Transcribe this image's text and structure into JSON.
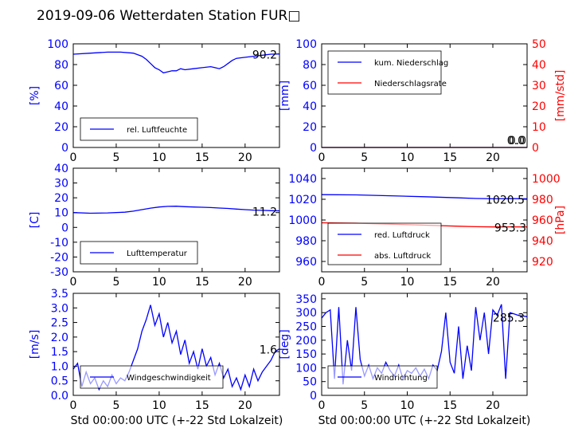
{
  "figure": {
    "title": "2019-09-06 Wetterdaten Station FUR□",
    "xlabel": "Std 00:00:00 UTC (+-22 Std Lokalzeit)"
  },
  "colors": {
    "blue": "#0000ff",
    "red": "#ff0000",
    "light_blue": "#8080ff",
    "box": "#a0a0a0"
  },
  "chart_data": [
    {
      "id": "humidity",
      "type": "line",
      "xlim": [
        0,
        24
      ],
      "ylim": [
        0,
        100
      ],
      "xticks": [
        0,
        5,
        10,
        15,
        20
      ],
      "yticks": [
        0,
        20,
        40,
        60,
        80,
        100
      ],
      "ylabel": "[%]",
      "value_label": "90.2",
      "legend": {
        "position": "lower-left",
        "entries": [
          "rel. Luftfeuchte"
        ]
      },
      "series": [
        {
          "name": "rel. Luftfeuchte",
          "color": "#0000ff",
          "x": [
            0,
            2,
            4,
            5.5,
            7,
            8,
            8.5,
            9,
            9.5,
            10,
            10.5,
            11,
            11.5,
            12,
            12.5,
            13,
            14,
            15,
            16,
            16.5,
            17,
            17.5,
            18,
            18.5,
            19,
            20,
            21,
            22,
            23,
            24
          ],
          "y": [
            90,
            91,
            92,
            92,
            91,
            88,
            85,
            81,
            77,
            75,
            72,
            73,
            74,
            74,
            76,
            75,
            76,
            77,
            78,
            77,
            76,
            78,
            81,
            84,
            86,
            87,
            88,
            89,
            90,
            90.2
          ]
        }
      ]
    },
    {
      "id": "precip",
      "type": "line",
      "xlim": [
        0,
        24
      ],
      "ylim": [
        0,
        100
      ],
      "xticks": [
        0,
        5,
        10,
        15,
        20
      ],
      "yticks": [
        0,
        20,
        40,
        60,
        80,
        100
      ],
      "ylabel": "[mm]",
      "ylim_right": [
        0,
        50
      ],
      "yticks_right": [
        0,
        10,
        20,
        30,
        40,
        50
      ],
      "ylabel_right": "[mm/std]",
      "value_label": "0.0",
      "value_label_right": "0.0",
      "legend": {
        "position": "top-left",
        "entries": [
          "kum. Niederschlag",
          "Niederschlagsrate"
        ]
      },
      "series": [
        {
          "name": "kum. Niederschlag",
          "color": "#0000ff",
          "axis": "left",
          "x": [
            0,
            24
          ],
          "y": [
            0,
            0
          ]
        },
        {
          "name": "Niederschlagsrate",
          "color": "#ff0000",
          "axis": "right",
          "x": [
            0,
            24
          ],
          "y": [
            0,
            0
          ]
        }
      ]
    },
    {
      "id": "temperature",
      "type": "line",
      "xlim": [
        0,
        24
      ],
      "ylim": [
        -30,
        40
      ],
      "xticks": [
        0,
        5,
        10,
        15,
        20
      ],
      "yticks": [
        -30,
        -20,
        -10,
        0,
        10,
        20,
        30,
        40
      ],
      "ylabel": "[C]",
      "value_label": "11.2",
      "legend": {
        "position": "lower-left",
        "entries": [
          "Lufttemperatur"
        ]
      },
      "series": [
        {
          "name": "Lufttemperatur",
          "color": "#0000ff",
          "x": [
            0,
            2,
            4,
            6,
            7,
            8,
            9,
            10,
            11,
            12,
            13,
            14,
            15,
            16,
            17,
            18,
            19,
            20,
            21,
            22,
            23,
            24
          ],
          "y": [
            10,
            9.6,
            9.8,
            10.3,
            11,
            12,
            13,
            13.8,
            14.2,
            14.3,
            14,
            13.8,
            13.6,
            13.4,
            13.1,
            12.8,
            12.4,
            12,
            11.7,
            11.5,
            11.3,
            11.2
          ]
        }
      ]
    },
    {
      "id": "pressure",
      "type": "line",
      "xlim": [
        0,
        24
      ],
      "ylim": [
        950,
        1050
      ],
      "xticks": [
        0,
        5,
        10,
        15,
        20
      ],
      "yticks": [
        960,
        980,
        1000,
        1020,
        1040
      ],
      "ylim_right": [
        910,
        1010
      ],
      "yticks_right": [
        920,
        940,
        960,
        980,
        1000
      ],
      "ylabel_right": "[hPa]",
      "value_label": "1020.5",
      "value_label_right": "953.3",
      "legend": {
        "position": "lower-left",
        "entries": [
          "red. Luftdruck",
          "abs. Luftdruck"
        ]
      },
      "series": [
        {
          "name": "red. Luftdruck",
          "color": "#0000ff",
          "axis": "left",
          "x": [
            0,
            4,
            8,
            12,
            16,
            18,
            20,
            22,
            24
          ],
          "y": [
            1024.5,
            1024.2,
            1023.4,
            1022.5,
            1021.4,
            1020.8,
            1020.5,
            1020.6,
            1020.5
          ]
        },
        {
          "name": "abs. Luftdruck",
          "color": "#ff0000",
          "axis": "right",
          "x": [
            0,
            4,
            8,
            12,
            16,
            18,
            20,
            22,
            24
          ],
          "y": [
            957.3,
            956.9,
            956.0,
            955.0,
            954.0,
            953.5,
            953.3,
            953.4,
            953.3
          ]
        }
      ]
    },
    {
      "id": "wind_speed",
      "type": "line",
      "xlim": [
        0,
        24
      ],
      "ylim": [
        0,
        3.5
      ],
      "xticks": [
        0,
        5,
        10,
        15,
        20
      ],
      "yticks": [
        0,
        0.5,
        1.0,
        1.5,
        2.0,
        2.5,
        3.0,
        3.5
      ],
      "ylabel": "[m/s]",
      "value_label": "1.6",
      "legend": {
        "position": "lower-left",
        "entries": [
          "Windgeschwindigkeit"
        ]
      },
      "series": [
        {
          "name": "Windgeschwindigkeit",
          "color": "#0000ff",
          "x": [
            0,
            0.5,
            1,
            1.5,
            2,
            2.5,
            3,
            3.5,
            4,
            4.5,
            5,
            5.5,
            6,
            6.5,
            7,
            7.5,
            8,
            8.5,
            9,
            9.5,
            10,
            10.5,
            11,
            11.5,
            12,
            12.5,
            13,
            13.5,
            14,
            14.5,
            15,
            15.5,
            16,
            16.5,
            17,
            17.5,
            18,
            18.5,
            19,
            19.5,
            20,
            20.5,
            21,
            21.5,
            22,
            22.5,
            23,
            23.5,
            24
          ],
          "y": [
            0.9,
            1.1,
            0.3,
            0.8,
            0.4,
            0.6,
            0.2,
            0.5,
            0.3,
            0.7,
            0.4,
            0.6,
            0.5,
            0.8,
            1.2,
            1.6,
            2.2,
            2.6,
            3.1,
            2.4,
            2.8,
            2.0,
            2.5,
            1.8,
            2.2,
            1.4,
            1.9,
            1.1,
            1.5,
            0.9,
            1.6,
            1.0,
            1.3,
            0.7,
            1.1,
            0.6,
            0.9,
            0.3,
            0.6,
            0.2,
            0.7,
            0.3,
            0.9,
            0.5,
            0.8,
            1.0,
            1.2,
            1.5,
            1.6
          ]
        }
      ]
    },
    {
      "id": "wind_dir",
      "type": "line",
      "xlim": [
        0,
        24
      ],
      "ylim": [
        0,
        370
      ],
      "xticks": [
        0,
        5,
        10,
        15,
        20
      ],
      "yticks": [
        0,
        50,
        100,
        150,
        200,
        250,
        300,
        350
      ],
      "ylabel": "[deg]",
      "value_label": "285.3",
      "legend": {
        "position": "lower-left",
        "entries": [
          "Windrichtung"
        ]
      },
      "series": [
        {
          "name": "Windrichtung",
          "color": "#0000ff",
          "x": [
            0,
            0.5,
            1,
            1.5,
            2,
            2.5,
            3,
            3.5,
            4,
            4.5,
            5,
            5.5,
            6,
            6.5,
            7,
            7.5,
            8,
            8.5,
            9,
            9.5,
            10,
            10.5,
            11,
            11.5,
            12,
            12.5,
            13,
            13.5,
            14,
            14.5,
            15,
            15.5,
            16,
            16.5,
            17,
            17.5,
            18,
            18.5,
            19,
            19.5,
            20,
            20.5,
            21,
            21.5,
            22,
            22.5,
            23,
            23.5,
            24
          ],
          "y": [
            280,
            300,
            310,
            60,
            320,
            40,
            200,
            90,
            320,
            130,
            70,
            110,
            60,
            100,
            80,
            120,
            90,
            70,
            110,
            60,
            90,
            80,
            100,
            70,
            95,
            60,
            110,
            90,
            160,
            300,
            120,
            80,
            250,
            60,
            180,
            90,
            320,
            200,
            300,
            150,
            310,
            290,
            330,
            60,
            300,
            295,
            290,
            288,
            285.3
          ]
        }
      ]
    }
  ]
}
